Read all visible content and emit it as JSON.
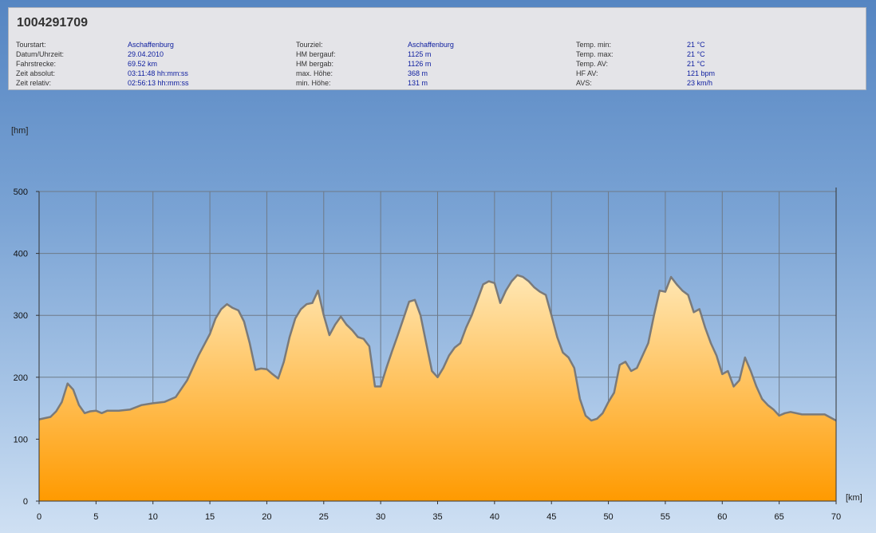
{
  "title": "1004291709",
  "info": {
    "col1_labels": [
      "Tourstart:",
      "Datum/Uhrzeit:",
      "Fahrstrecke:",
      "Zeit absolut:",
      "Zeit relativ:"
    ],
    "col1_values": [
      "Aschaffenburg",
      "29.04.2010",
      "69.52 km",
      "03:11:48 hh:mm:ss",
      "02:56:13 hh:mm:ss"
    ],
    "col2_labels": [
      "Tourziel:",
      "HM bergauf:",
      "HM bergab:",
      "max. Höhe:",
      "min. Höhe:"
    ],
    "col2_values": [
      "Aschaffenburg",
      "1125 m",
      "1126 m",
      "368 m",
      "131 m"
    ],
    "col3_labels": [
      "Temp. min:",
      "Temp. max:",
      "Temp. AV:",
      "HF AV:",
      "AVS:"
    ],
    "col3_values": [
      "21 °C",
      "21 °C",
      "21 °C",
      "121 bpm",
      "23 km/h"
    ]
  },
  "colors": {
    "fill_top": "#ffe7b4",
    "fill_bottom": "#ff9a00",
    "stroke": "#7a7a7a",
    "grid": "#6e7a88",
    "info_value": "#1020a0"
  },
  "chart_data": {
    "type": "area",
    "xlabel": "[km]",
    "ylabel": "[hm]",
    "xlim": [
      0,
      70
    ],
    "ylim": [
      0,
      500
    ],
    "xticks": [
      "0",
      "5",
      "10",
      "15",
      "20",
      "25",
      "30",
      "35",
      "40",
      "45",
      "50",
      "55",
      "60",
      "65",
      "70"
    ],
    "yticks": [
      "0",
      "100",
      "200",
      "300",
      "400",
      "500"
    ],
    "grid": true,
    "x": [
      0,
      1,
      1.5,
      2,
      2.5,
      3,
      3.5,
      4,
      4.5,
      5,
      5.5,
      6,
      7,
      8,
      9,
      10,
      11,
      12,
      13,
      14,
      15,
      15.5,
      16,
      16.5,
      17,
      17.5,
      18,
      18.5,
      19,
      19.5,
      20,
      20.5,
      21,
      21.5,
      22,
      22.5,
      23,
      23.5,
      24,
      24.5,
      25,
      25.5,
      26,
      26.5,
      27,
      27.5,
      28,
      28.5,
      29,
      29.5,
      30,
      30.5,
      31,
      31.5,
      32,
      32.5,
      33,
      33.5,
      34,
      34.5,
      35,
      35.5,
      36,
      36.5,
      37,
      37.5,
      38,
      38.5,
      39,
      39.5,
      40,
      40.5,
      41,
      41.5,
      42,
      42.5,
      43,
      43.5,
      44,
      44.5,
      45,
      45.5,
      46,
      46.5,
      47,
      47.5,
      48,
      48.5,
      49,
      49.5,
      50,
      50.5,
      51,
      51.5,
      52,
      52.5,
      53,
      53.5,
      54,
      54.5,
      55,
      55.5,
      56,
      56.5,
      57,
      57.5,
      58,
      58.5,
      59,
      59.5,
      60,
      60.5,
      61,
      61.5,
      62,
      62.5,
      63,
      63.5,
      64,
      64.5,
      65,
      65.5,
      66,
      67,
      68,
      69,
      70
    ],
    "values": [
      132,
      136,
      145,
      160,
      190,
      180,
      155,
      142,
      145,
      146,
      142,
      146,
      146,
      148,
      155,
      158,
      160,
      168,
      195,
      235,
      270,
      295,
      310,
      318,
      312,
      308,
      290,
      255,
      212,
      214,
      213,
      205,
      198,
      225,
      265,
      295,
      310,
      318,
      320,
      340,
      300,
      268,
      285,
      298,
      285,
      276,
      265,
      262,
      250,
      185,
      185,
      215,
      242,
      268,
      295,
      322,
      325,
      300,
      255,
      210,
      200,
      215,
      235,
      248,
      255,
      280,
      300,
      325,
      350,
      355,
      352,
      320,
      340,
      355,
      365,
      362,
      355,
      345,
      338,
      333,
      300,
      265,
      240,
      232,
      215,
      165,
      138,
      130,
      133,
      142,
      160,
      175,
      220,
      225,
      210,
      215,
      235,
      255,
      300,
      340,
      338,
      362,
      350,
      340,
      333,
      305,
      310,
      280,
      255,
      235,
      205,
      210,
      185,
      195,
      232,
      210,
      185,
      165,
      155,
      148,
      138,
      142,
      144,
      140,
      140,
      140,
      130
    ]
  }
}
